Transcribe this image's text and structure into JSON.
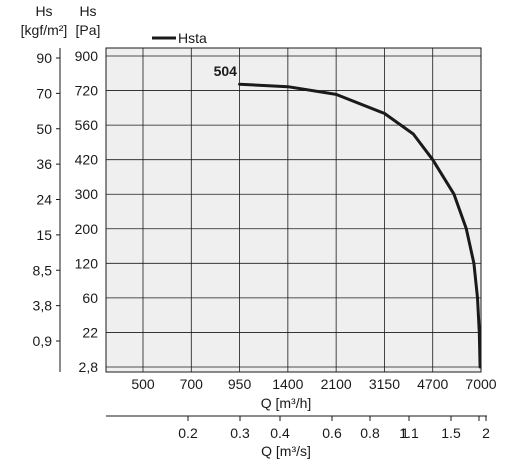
{
  "chart_data": {
    "type": "line",
    "title": "",
    "curve_label": "504",
    "legend": {
      "entries": [
        "Hsta"
      ],
      "placement": "top-left"
    },
    "grid": true,
    "plot_background": "#efefef",
    "line_color": "#1a1a1a",
    "y_axis_kgf": {
      "label_line1": "Hs",
      "label_line2": "[kgf/m²]",
      "ticks": [
        "90",
        "70",
        "50",
        "36",
        "24",
        "15",
        "8,5",
        "3,8",
        "0,9"
      ]
    },
    "y_axis_pa": {
      "label_line1": "Hs",
      "label_line2": "[Pa]",
      "ticks": [
        "900",
        "720",
        "560",
        "420",
        "300",
        "200",
        "120",
        "60",
        "22",
        "2,8"
      ]
    },
    "x_axis_m3h": {
      "label": "Q [m³/h]",
      "ticks": [
        "500",
        "700",
        "950",
        "1400",
        "2100",
        "3150",
        "4700",
        "7000"
      ]
    },
    "x_axis_m3s": {
      "label": "Q [m³/s]",
      "ticks": [
        "0.2",
        "0.3",
        "0.4",
        "0.6",
        "0.8",
        "1",
        "1.1",
        "1.5",
        "2"
      ]
    },
    "series": [
      {
        "name": "Hsta",
        "x_m3h": [
          950,
          1400,
          2100,
          3150,
          4000,
          4700,
          5600,
          6200,
          6600,
          6800,
          6900,
          6950
        ],
        "y_pa": [
          750,
          738,
          700,
          610,
          520,
          420,
          300,
          200,
          120,
          60,
          22,
          2.8
        ]
      }
    ]
  }
}
